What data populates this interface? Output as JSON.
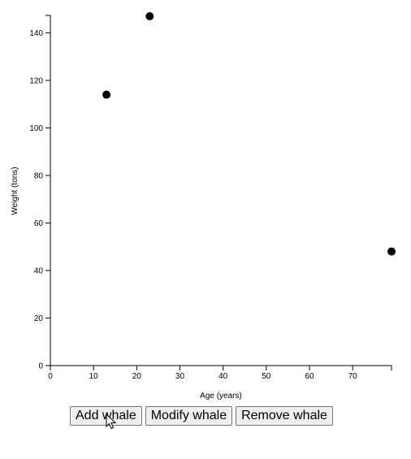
{
  "chart_data": {
    "type": "scatter",
    "xlabel": "Age (years)",
    "ylabel": "Weight (tons)",
    "xlim": [
      0,
      79
    ],
    "ylim": [
      0,
      147
    ],
    "x_ticks": [
      0,
      10,
      20,
      30,
      40,
      50,
      60,
      70
    ],
    "y_ticks": [
      0,
      20,
      40,
      60,
      80,
      100,
      120,
      140
    ],
    "grid": false,
    "points": [
      {
        "x": 13,
        "y": 114
      },
      {
        "x": 23,
        "y": 147
      },
      {
        "x": 79,
        "y": 48
      }
    ],
    "point_color": "#000000"
  },
  "controls": {
    "add_label": "Add whale",
    "modify_label": "Modify whale",
    "remove_label": "Remove whale"
  },
  "cursor": {
    "icon": "arrow-cursor-icon"
  }
}
